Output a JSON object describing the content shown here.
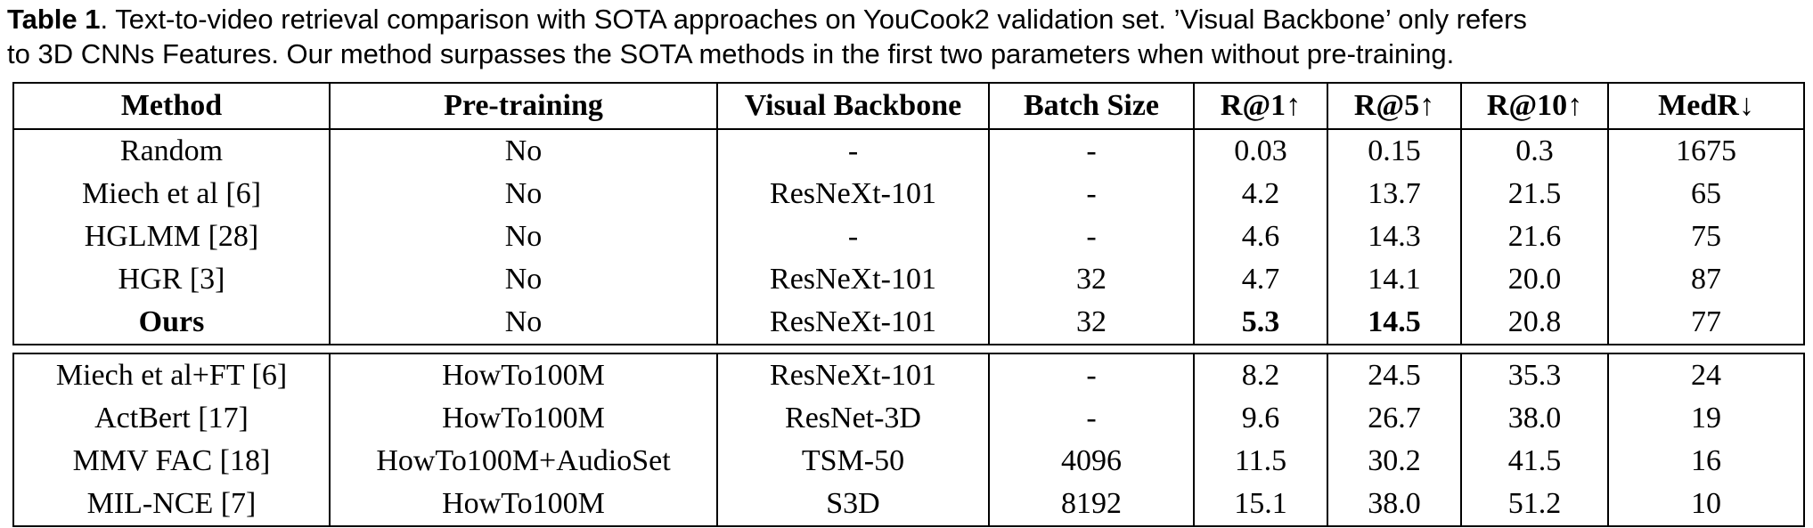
{
  "caption": {
    "label": "Table 1",
    "line1": ". Text-to-video retrieval comparison with SOTA approaches on YouCook2 validation set. ’Visual Backbone’ only refers",
    "line2": "to 3D CNNs Features. Our method surpasses the SOTA methods in the first two parameters when without pre-training."
  },
  "table": {
    "headers": [
      "Method",
      "Pre-training",
      "Visual Backbone",
      "Batch Size",
      "R@1↑",
      "R@5↑",
      "R@10↑",
      "MedR↓"
    ],
    "group1": [
      [
        "Random",
        "No",
        "-",
        "-",
        "0.03",
        "0.15",
        "0.3",
        "1675"
      ],
      [
        "Miech et al [6]",
        "No",
        "ResNeXt-101",
        "-",
        "4.2",
        "13.7",
        "21.5",
        "65"
      ],
      [
        "HGLMM [28]",
        "No",
        "-",
        "-",
        "4.6",
        "14.3",
        "21.6",
        "75"
      ],
      [
        "HGR [3]",
        "No",
        "ResNeXt-101",
        "32",
        "4.7",
        "14.1",
        "20.0",
        "87"
      ],
      [
        "Ours",
        "No",
        "ResNeXt-101",
        "32",
        "5.3",
        "14.5",
        "20.8",
        "77"
      ]
    ],
    "group2": [
      [
        "Miech et al+FT [6]",
        "HowTo100M",
        "ResNeXt-101",
        "-",
        "8.2",
        "24.5",
        "35.3",
        "24"
      ],
      [
        "ActBert [17]",
        "HowTo100M",
        "ResNet-3D",
        "-",
        "9.6",
        "26.7",
        "38.0",
        "19"
      ],
      [
        "MMV FAC [18]",
        "HowTo100M+AudioSet",
        "TSM-50",
        "4096",
        "11.5",
        "30.2",
        "41.5",
        "16"
      ],
      [
        "MIL-NCE [7]",
        "HowTo100M",
        "S3D",
        "8192",
        "15.1",
        "38.0",
        "51.2",
        "10"
      ]
    ]
  }
}
